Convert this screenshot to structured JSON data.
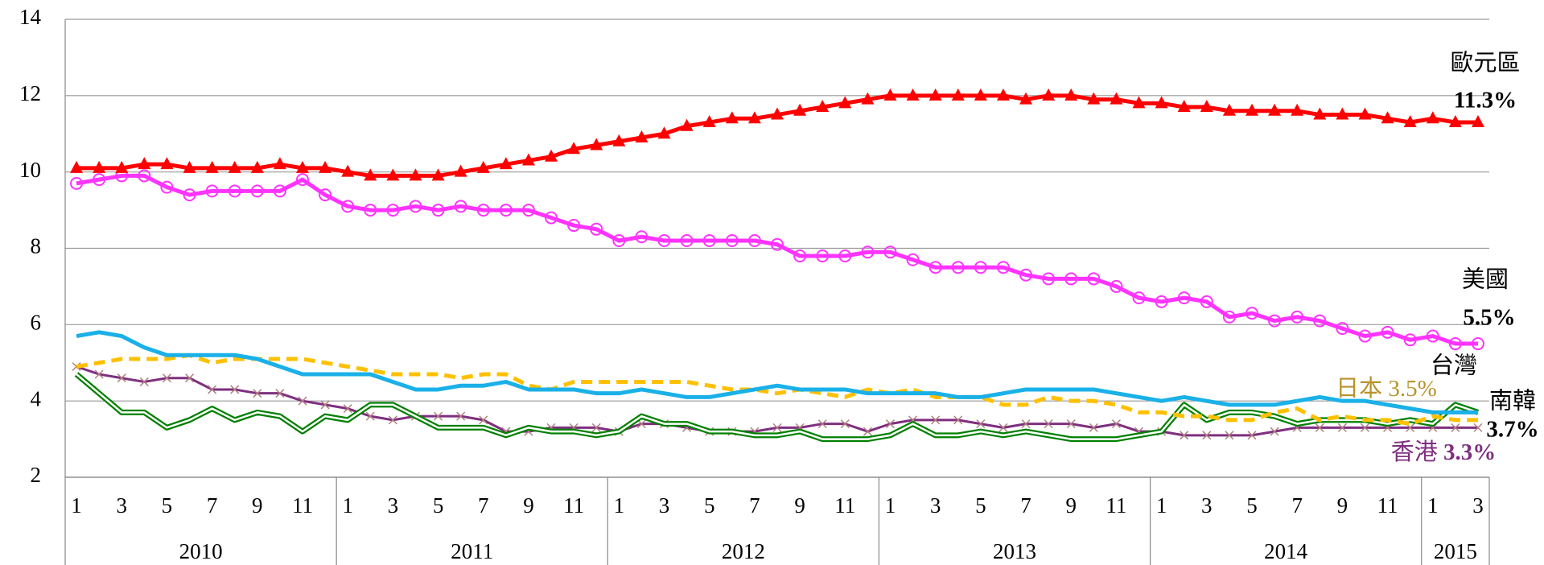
{
  "chart_data": {
    "type": "line",
    "categories": [
      "1",
      null,
      "3",
      null,
      "5",
      null,
      "7",
      null,
      "9",
      null,
      "11",
      null,
      "1",
      null,
      "3",
      null,
      "5",
      null,
      "7",
      null,
      "9",
      null,
      "11",
      null,
      "1",
      null,
      "3",
      null,
      "5",
      null,
      "7",
      null,
      "9",
      null,
      "11",
      null,
      "1",
      null,
      "3",
      null,
      "5",
      null,
      "7",
      null,
      "9",
      null,
      "11",
      null,
      "1",
      null,
      "3",
      null,
      "5",
      null,
      "7",
      null,
      "9",
      null,
      "11",
      null,
      "1",
      null,
      "3"
    ],
    "years": [
      "2010",
      "2011",
      "2012",
      "2013",
      "2014",
      "2015"
    ],
    "ylim": [
      2,
      14
    ],
    "yticks": [
      2,
      4,
      6,
      8,
      10,
      12,
      14
    ],
    "grid": true,
    "series": [
      {
        "name": "歐元區",
        "color": "#ff0000",
        "marker": "triangle",
        "values": [
          10.1,
          10.1,
          10.1,
          10.2,
          10.2,
          10.1,
          10.1,
          10.1,
          10.1,
          10.2,
          10.1,
          10.1,
          10.0,
          9.9,
          9.9,
          9.9,
          9.9,
          10.0,
          10.1,
          10.2,
          10.3,
          10.4,
          10.6,
          10.7,
          10.8,
          10.9,
          11.0,
          11.2,
          11.3,
          11.4,
          11.4,
          11.5,
          11.6,
          11.7,
          11.8,
          11.9,
          12.0,
          12.0,
          12.0,
          12.0,
          12.0,
          12.0,
          11.9,
          12.0,
          12.0,
          11.9,
          11.9,
          11.8,
          11.8,
          11.7,
          11.7,
          11.6,
          11.6,
          11.6,
          11.6,
          11.5,
          11.5,
          11.5,
          11.4,
          11.3,
          11.4,
          11.3,
          11.3
        ],
        "value_labels": [
          null,
          null,
          null,
          null,
          null,
          null,
          null,
          null,
          null,
          null,
          null,
          null,
          null,
          null,
          null,
          null,
          null,
          null,
          null,
          null,
          null,
          null,
          null,
          null,
          null,
          null,
          null,
          null,
          null,
          null,
          null,
          null,
          null,
          null,
          null,
          null,
          null,
          null,
          null,
          null,
          null,
          null,
          null,
          null,
          null,
          null,
          null,
          null,
          null,
          null,
          null,
          null,
          null,
          null,
          null,
          null,
          null,
          null,
          null,
          null,
          null,
          null,
          "11.3%"
        ]
      },
      {
        "name": "美國",
        "color": "#ff33ff",
        "marker": "circle",
        "values": [
          9.7,
          9.8,
          9.9,
          9.9,
          9.6,
          9.4,
          9.5,
          9.5,
          9.5,
          9.5,
          9.8,
          9.4,
          9.1,
          9.0,
          9.0,
          9.1,
          9.0,
          9.1,
          9.0,
          9.0,
          9.0,
          8.8,
          8.6,
          8.5,
          8.2,
          8.3,
          8.2,
          8.2,
          8.2,
          8.2,
          8.2,
          8.1,
          7.8,
          7.8,
          7.8,
          7.9,
          7.9,
          7.7,
          7.5,
          7.5,
          7.5,
          7.5,
          7.3,
          7.2,
          7.2,
          7.2,
          7.0,
          6.7,
          6.6,
          6.7,
          6.6,
          6.2,
          6.3,
          6.1,
          6.2,
          6.1,
          5.9,
          5.7,
          5.8,
          5.6,
          5.7,
          5.5,
          5.5
        ],
        "value_labels": [
          null,
          null,
          null,
          null,
          null,
          null,
          null,
          null,
          null,
          null,
          null,
          null,
          null,
          null,
          null,
          null,
          null,
          null,
          null,
          null,
          null,
          null,
          null,
          null,
          null,
          null,
          null,
          null,
          null,
          null,
          null,
          null,
          null,
          null,
          null,
          null,
          null,
          null,
          null,
          null,
          null,
          null,
          null,
          null,
          null,
          null,
          null,
          null,
          null,
          null,
          null,
          null,
          null,
          null,
          null,
          null,
          null,
          null,
          null,
          null,
          null,
          null,
          "5.5%"
        ]
      },
      {
        "name": "台灣",
        "color": "#1ab0e8",
        "marker": null,
        "values": [
          5.7,
          5.8,
          5.7,
          5.4,
          5.2,
          5.2,
          5.2,
          5.2,
          5.1,
          4.9,
          4.7,
          4.7,
          4.7,
          4.7,
          4.5,
          4.3,
          4.3,
          4.4,
          4.4,
          4.5,
          4.3,
          4.3,
          4.3,
          4.2,
          4.2,
          4.3,
          4.2,
          4.1,
          4.1,
          4.2,
          4.3,
          4.4,
          4.3,
          4.3,
          4.3,
          4.2,
          4.2,
          4.2,
          4.2,
          4.1,
          4.1,
          4.2,
          4.3,
          4.3,
          4.3,
          4.3,
          4.2,
          4.1,
          4.0,
          4.1,
          4.0,
          3.9,
          3.9,
          3.9,
          4.0,
          4.1,
          4.0,
          4.0,
          3.9,
          3.8,
          3.7,
          3.7,
          3.7
        ]
      },
      {
        "name": "日本",
        "color": "#ffc000",
        "marker": null,
        "dash": true,
        "label_color": "#b8922a",
        "values": [
          4.9,
          5.0,
          5.1,
          5.1,
          5.1,
          5.2,
          5.0,
          5.1,
          5.1,
          5.1,
          5.1,
          5.0,
          4.9,
          4.8,
          4.7,
          4.7,
          4.7,
          4.6,
          4.7,
          4.7,
          4.4,
          4.3,
          4.5,
          4.5,
          4.5,
          4.5,
          4.5,
          4.5,
          4.4,
          4.3,
          4.3,
          4.2,
          4.3,
          4.2,
          4.1,
          4.3,
          4.2,
          4.3,
          4.1,
          4.1,
          4.1,
          3.9,
          3.9,
          4.1,
          4.0,
          4.0,
          3.9,
          3.7,
          3.7,
          3.6,
          3.6,
          3.5,
          3.5,
          3.7,
          3.8,
          3.5,
          3.6,
          3.5,
          3.5,
          3.4,
          3.6,
          3.5,
          3.5
        ],
        "value_labels": [
          null,
          null,
          null,
          null,
          null,
          null,
          null,
          null,
          null,
          null,
          null,
          null,
          null,
          null,
          null,
          null,
          null,
          null,
          null,
          null,
          null,
          null,
          null,
          null,
          null,
          null,
          null,
          null,
          null,
          null,
          null,
          null,
          null,
          null,
          null,
          null,
          null,
          null,
          null,
          null,
          null,
          null,
          null,
          null,
          null,
          null,
          null,
          null,
          null,
          null,
          null,
          null,
          null,
          null,
          null,
          null,
          null,
          null,
          null,
          null,
          null,
          null,
          "3.5%"
        ]
      },
      {
        "name": "南韓",
        "color": "#008000",
        "marker": null,
        "double": true,
        "values": [
          4.7,
          4.2,
          3.7,
          3.7,
          3.3,
          3.5,
          3.8,
          3.5,
          3.7,
          3.6,
          3.2,
          3.6,
          3.5,
          3.9,
          3.9,
          3.6,
          3.3,
          3.3,
          3.3,
          3.1,
          3.3,
          3.2,
          3.2,
          3.1,
          3.2,
          3.6,
          3.4,
          3.4,
          3.2,
          3.2,
          3.1,
          3.1,
          3.2,
          3.0,
          3.0,
          3.0,
          3.1,
          3.4,
          3.1,
          3.1,
          3.2,
          3.1,
          3.2,
          3.1,
          3.0,
          3.0,
          3.0,
          3.1,
          3.2,
          3.9,
          3.5,
          3.7,
          3.7,
          3.6,
          3.4,
          3.5,
          3.5,
          3.5,
          3.4,
          3.5,
          3.4,
          3.9,
          3.7
        ],
        "value_labels": [
          null,
          null,
          null,
          null,
          null,
          null,
          null,
          null,
          null,
          null,
          null,
          null,
          null,
          null,
          null,
          null,
          null,
          null,
          null,
          null,
          null,
          null,
          null,
          null,
          null,
          null,
          null,
          null,
          null,
          null,
          null,
          null,
          null,
          null,
          null,
          null,
          null,
          null,
          null,
          null,
          null,
          null,
          null,
          null,
          null,
          null,
          null,
          null,
          null,
          null,
          null,
          null,
          null,
          null,
          null,
          null,
          null,
          null,
          null,
          null,
          null,
          null,
          "3.7%"
        ]
      },
      {
        "name": "香港",
        "color": "#7f2f7f",
        "marker": "x",
        "values": [
          4.9,
          4.7,
          4.6,
          4.5,
          4.6,
          4.6,
          4.3,
          4.3,
          4.2,
          4.2,
          4.0,
          3.9,
          3.8,
          3.6,
          3.5,
          3.6,
          3.6,
          3.6,
          3.5,
          3.2,
          3.2,
          3.3,
          3.3,
          3.3,
          3.2,
          3.4,
          3.4,
          3.3,
          3.2,
          3.2,
          3.2,
          3.3,
          3.3,
          3.4,
          3.4,
          3.2,
          3.4,
          3.5,
          3.5,
          3.5,
          3.4,
          3.3,
          3.4,
          3.4,
          3.4,
          3.3,
          3.4,
          3.2,
          3.2,
          3.1,
          3.1,
          3.1,
          3.1,
          3.2,
          3.3,
          3.3,
          3.3,
          3.3,
          3.3,
          3.3,
          3.3,
          3.3,
          3.3
        ],
        "value_labels": [
          null,
          null,
          null,
          null,
          null,
          null,
          null,
          null,
          null,
          null,
          null,
          null,
          null,
          null,
          null,
          null,
          null,
          null,
          null,
          null,
          null,
          null,
          null,
          null,
          null,
          null,
          null,
          null,
          null,
          null,
          null,
          null,
          null,
          null,
          null,
          null,
          null,
          null,
          null,
          null,
          null,
          null,
          null,
          null,
          null,
          null,
          null,
          null,
          null,
          null,
          null,
          null,
          null,
          null,
          null,
          null,
          null,
          null,
          null,
          null,
          null,
          null,
          "3.3%"
        ]
      }
    ]
  }
}
